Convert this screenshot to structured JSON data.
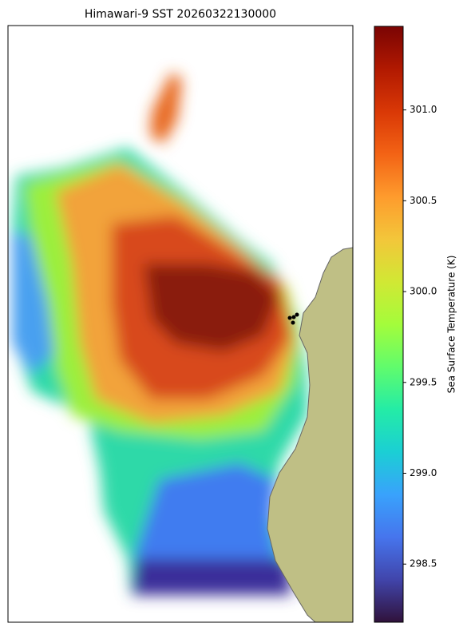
{
  "chart_data": {
    "type": "map",
    "title": "Himawari-9 SST 20260322130000",
    "colorbar": {
      "label": "Sea Surface Temperature (K)",
      "colormap": "turbo",
      "lim": [
        298.18,
        301.46
      ],
      "ticks": [
        298.5,
        {
          "value": 299,
          "label": "299.0"
        },
        299.5,
        {
          "value": 300,
          "label": "300.0"
        },
        300.5,
        {
          "value": 301,
          "label": "301.0"
        }
      ]
    }
  }
}
